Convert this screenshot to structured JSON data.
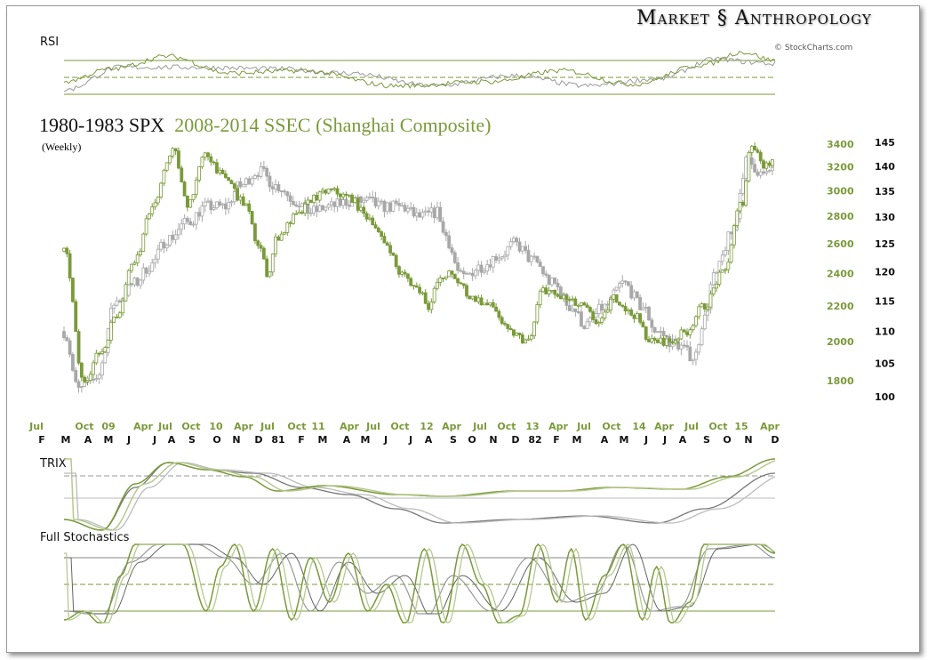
{
  "header": {
    "logo_left": "Market",
    "logo_right": "Anthropology",
    "credit": "© StockCharts.com"
  },
  "panels": {
    "rsi": "RSI",
    "trix": "TRIX",
    "stoch": "Full Stochastics"
  },
  "chart_data": {
    "type": "line",
    "title_spx": "1980-1983 SPX",
    "title_ssec": "2008-2014 SSEC (Shanghai Composite)",
    "subtitle": "(Weekly)",
    "colors": {
      "spx": "#9a9a9a",
      "ssec": "#7a9a3a",
      "axis_ssec": "#7a9a3a",
      "axis_spx": "#111111"
    },
    "x_weeks": [
      0,
      150
    ],
    "ssec_axis": {
      "ticks": [
        "3400",
        "3200",
        "3000",
        "2800",
        "2600",
        "2400",
        "2200",
        "2000",
        "1800"
      ],
      "range": [
        1750,
        3500
      ]
    },
    "spx_axis": {
      "ticks": [
        "145",
        "140",
        "135",
        "130",
        "125",
        "120",
        "115",
        "110",
        "105",
        "100"
      ],
      "range": [
        98,
        148
      ]
    },
    "x_labels_ssec": [
      "Jul",
      "Oct",
      "09",
      "Apr",
      "Jul",
      "Oct",
      "10",
      "Apr",
      "Jul",
      "Oct",
      "11",
      "Apr",
      "Jul",
      "Oct",
      "12",
      "Apr",
      "Jul",
      "Oct",
      "13",
      "Apr",
      "Jul",
      "Oct",
      "14",
      "Apr",
      "Jul",
      "Oct",
      "15",
      "Apr"
    ],
    "x_labels_spx": [
      "F",
      "M",
      "A",
      "M",
      "J",
      "J",
      "A",
      "S",
      "O",
      "N",
      "D",
      "81",
      "F",
      "M",
      "A",
      "M",
      "J",
      "J",
      "A",
      "S",
      "O",
      "N",
      "D",
      "82",
      "F",
      "M",
      "A",
      "M",
      "J",
      "J",
      "A",
      "S",
      "O",
      "N",
      "D"
    ],
    "ssec": [
      [
        0,
        2550
      ],
      [
        4,
        1800
      ],
      [
        8,
        1950
      ],
      [
        11,
        2150
      ],
      [
        15,
        2500
      ],
      [
        19,
        2900
      ],
      [
        23,
        3350
      ],
      [
        26,
        2900
      ],
      [
        30,
        3300
      ],
      [
        34,
        3100
      ],
      [
        38,
        2900
      ],
      [
        41,
        2600
      ],
      [
        43,
        2400
      ],
      [
        45,
        2650
      ],
      [
        49,
        2800
      ],
      [
        53,
        2950
      ],
      [
        56,
        3000
      ],
      [
        60,
        2950
      ],
      [
        64,
        2800
      ],
      [
        68,
        2600
      ],
      [
        71,
        2400
      ],
      [
        75,
        2300
      ],
      [
        77,
        2200
      ],
      [
        79,
        2350
      ],
      [
        81,
        2400
      ],
      [
        83,
        2350
      ],
      [
        86,
        2250
      ],
      [
        90,
        2200
      ],
      [
        94,
        2050
      ],
      [
        98,
        2000
      ],
      [
        101,
        2300
      ],
      [
        105,
        2250
      ],
      [
        109,
        2200
      ],
      [
        113,
        2100
      ],
      [
        116,
        2250
      ],
      [
        120,
        2150
      ],
      [
        124,
        2000
      ],
      [
        128,
        2000
      ],
      [
        131,
        2050
      ],
      [
        135,
        2200
      ],
      [
        139,
        2400
      ],
      [
        143,
        2900
      ],
      [
        145,
        3400
      ],
      [
        148,
        3200
      ],
      [
        150,
        3300
      ]
    ],
    "spx": [
      [
        0,
        110
      ],
      [
        3,
        101
      ],
      [
        7,
        103
      ],
      [
        11,
        115
      ],
      [
        15,
        118
      ],
      [
        18,
        121
      ],
      [
        22,
        126
      ],
      [
        26,
        129
      ],
      [
        30,
        132
      ],
      [
        34,
        132
      ],
      [
        37,
        136
      ],
      [
        41,
        139
      ],
      [
        45,
        136
      ],
      [
        49,
        133
      ],
      [
        52,
        131
      ],
      [
        56,
        132
      ],
      [
        60,
        133
      ],
      [
        64,
        133
      ],
      [
        67,
        132
      ],
      [
        71,
        132
      ],
      [
        75,
        130
      ],
      [
        79,
        131
      ],
      [
        80,
        127
      ],
      [
        84,
        119
      ],
      [
        88,
        121
      ],
      [
        92,
        123
      ],
      [
        95,
        125
      ],
      [
        99,
        122
      ],
      [
        103,
        118
      ],
      [
        107,
        114
      ],
      [
        110,
        111
      ],
      [
        114,
        114
      ],
      [
        118,
        118
      ],
      [
        122,
        114
      ],
      [
        125,
        110
      ],
      [
        129,
        108
      ],
      [
        133,
        106
      ],
      [
        135,
        112
      ],
      [
        137,
        119
      ],
      [
        141,
        127
      ],
      [
        144,
        141
      ],
      [
        148,
        138
      ],
      [
        150,
        141
      ]
    ],
    "rsi": {
      "levels": [
        70,
        50,
        30
      ],
      "ssec": [
        [
          0,
          45
        ],
        [
          10,
          60
        ],
        [
          22,
          75
        ],
        [
          35,
          55
        ],
        [
          50,
          58
        ],
        [
          70,
          40
        ],
        [
          90,
          45
        ],
        [
          105,
          58
        ],
        [
          120,
          42
        ],
        [
          135,
          65
        ],
        [
          143,
          80
        ],
        [
          150,
          70
        ]
      ],
      "spx": [
        [
          0,
          35
        ],
        [
          12,
          62
        ],
        [
          28,
          62
        ],
        [
          45,
          60
        ],
        [
          60,
          55
        ],
        [
          78,
          40
        ],
        [
          95,
          52
        ],
        [
          110,
          40
        ],
        [
          125,
          48
        ],
        [
          138,
          72
        ],
        [
          145,
          68
        ],
        [
          150,
          66
        ]
      ]
    },
    "trix": {
      "ssec": [
        [
          0,
          -0.6
        ],
        [
          8,
          -0.9
        ],
        [
          15,
          0.4
        ],
        [
          22,
          1.0
        ],
        [
          30,
          0.8
        ],
        [
          38,
          0.6
        ],
        [
          45,
          0.2
        ],
        [
          55,
          0.35
        ],
        [
          70,
          0.1
        ],
        [
          80,
          0.05
        ],
        [
          95,
          0.2
        ],
        [
          105,
          0.2
        ],
        [
          115,
          0.3
        ],
        [
          130,
          0.25
        ],
        [
          140,
          0.6
        ],
        [
          150,
          1.1
        ]
      ],
      "spx": [
        [
          0,
          -0.6
        ],
        [
          8,
          -0.9
        ],
        [
          15,
          0.3
        ],
        [
          22,
          1.0
        ],
        [
          30,
          0.8
        ],
        [
          40,
          0.7
        ],
        [
          50,
          0.3
        ],
        [
          60,
          0.1
        ],
        [
          70,
          -0.3
        ],
        [
          80,
          -0.7
        ],
        [
          95,
          -0.6
        ],
        [
          110,
          -0.5
        ],
        [
          125,
          -0.7
        ],
        [
          135,
          -0.3
        ],
        [
          150,
          0.7
        ]
      ]
    },
    "stoch": {
      "levels": [
        80,
        50,
        20
      ],
      "ssec": [
        [
          0,
          10
        ],
        [
          4,
          20
        ],
        [
          8,
          5
        ],
        [
          12,
          60
        ],
        [
          15,
          95
        ],
        [
          20,
          100
        ],
        [
          25,
          95
        ],
        [
          30,
          20
        ],
        [
          33,
          70
        ],
        [
          36,
          95
        ],
        [
          40,
          20
        ],
        [
          44,
          90
        ],
        [
          48,
          10
        ],
        [
          52,
          80
        ],
        [
          56,
          30
        ],
        [
          60,
          85
        ],
        [
          64,
          20
        ],
        [
          68,
          50
        ],
        [
          72,
          5
        ],
        [
          76,
          90
        ],
        [
          80,
          5
        ],
        [
          84,
          95
        ],
        [
          88,
          50
        ],
        [
          92,
          5
        ],
        [
          96,
          15
        ],
        [
          100,
          95
        ],
        [
          104,
          30
        ],
        [
          107,
          90
        ],
        [
          110,
          10
        ],
        [
          114,
          60
        ],
        [
          118,
          95
        ],
        [
          122,
          10
        ],
        [
          125,
          70
        ],
        [
          128,
          5
        ],
        [
          132,
          30
        ],
        [
          135,
          95
        ],
        [
          140,
          97
        ],
        [
          145,
          100
        ],
        [
          150,
          85
        ]
      ],
      "spx": [
        [
          0,
          20
        ],
        [
          8,
          15
        ],
        [
          14,
          75
        ],
        [
          20,
          95
        ],
        [
          28,
          95
        ],
        [
          34,
          80
        ],
        [
          40,
          50
        ],
        [
          46,
          85
        ],
        [
          52,
          20
        ],
        [
          58,
          75
        ],
        [
          64,
          40
        ],
        [
          70,
          60
        ],
        [
          76,
          10
        ],
        [
          82,
          60
        ],
        [
          90,
          20
        ],
        [
          98,
          80
        ],
        [
          106,
          30
        ],
        [
          112,
          40
        ],
        [
          118,
          95
        ],
        [
          124,
          20
        ],
        [
          130,
          25
        ],
        [
          136,
          90
        ],
        [
          145,
          95
        ],
        [
          150,
          80
        ]
      ]
    }
  }
}
